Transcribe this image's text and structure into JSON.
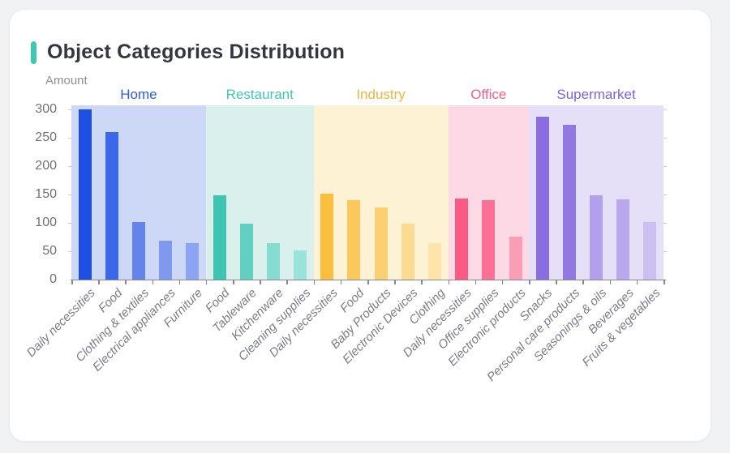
{
  "page": {
    "background_color": "#f1f2f4"
  },
  "card": {
    "title": "Object Categories Distribution",
    "accent_color": "#3ec8b4"
  },
  "chart_data": {
    "type": "bar",
    "title": "Object Categories Distribution",
    "xlabel": "",
    "ylabel": "Amount",
    "ylim": [
      0,
      300
    ],
    "yticks": [
      0,
      50,
      100,
      150,
      200,
      250,
      300
    ],
    "grid": false,
    "legend_position": "top-inline-group-headers",
    "axis_color": "#86878f",
    "tick_label_color": "#6f7179",
    "x_label_color": "#7b7c86",
    "groups": [
      {
        "name": "Home",
        "label_color": "#2b5ce6",
        "band_color": "#cdd8f7",
        "bars": [
          {
            "category": "Daily necessities",
            "value": 300,
            "color": "#1d50e2"
          },
          {
            "category": "Food",
            "value": 260,
            "color": "#3b68e8"
          },
          {
            "category": "Clothing & textiles",
            "value": 102,
            "color": "#6484ec"
          },
          {
            "category": "Electrical appliances",
            "value": 68,
            "color": "#7f99ef"
          },
          {
            "category": "Furniture",
            "value": 64,
            "color": "#8ca4f1"
          }
        ]
      },
      {
        "name": "Restaurant",
        "label_color": "#41c7b3",
        "band_color": "#d9f0ed",
        "bars": [
          {
            "category": "Food",
            "value": 148,
            "color": "#3ec5b1"
          },
          {
            "category": "Tableware",
            "value": 98,
            "color": "#62d0c1"
          },
          {
            "category": "Kitchenware",
            "value": 65,
            "color": "#86dcd1"
          },
          {
            "category": "Cleaning supplies",
            "value": 51,
            "color": "#99e3da"
          }
        ]
      },
      {
        "name": "Industry",
        "label_color": "#e9b73d",
        "band_color": "#fdf2d3",
        "bars": [
          {
            "category": "Daily necessities",
            "value": 151,
            "color": "#fbbe3d"
          },
          {
            "category": "Food",
            "value": 140,
            "color": "#fbc85c"
          },
          {
            "category": "Baby Products",
            "value": 127,
            "color": "#fcd072"
          },
          {
            "category": "Electronic Devices",
            "value": 99,
            "color": "#fdda92"
          },
          {
            "category": "Clothing",
            "value": 64,
            "color": "#fee3ab"
          }
        ]
      },
      {
        "name": "Office",
        "label_color": "#f75e89",
        "band_color": "#fdd9e5",
        "bars": [
          {
            "category": "Daily necessities",
            "value": 143,
            "color": "#fa5a84"
          },
          {
            "category": "Office supplies",
            "value": 140,
            "color": "#fb7095"
          },
          {
            "category": "Electronic products",
            "value": 76,
            "color": "#fc9db8"
          }
        ]
      },
      {
        "name": "Supermarket",
        "label_color": "#7d64d5",
        "band_color": "#e5dff7",
        "bars": [
          {
            "category": "Snacks",
            "value": 287,
            "color": "#8a6de0"
          },
          {
            "category": "Personal care products",
            "value": 273,
            "color": "#9278e2"
          },
          {
            "category": "Seasonings & oils",
            "value": 149,
            "color": "#b2a0ec"
          },
          {
            "category": "Beverages",
            "value": 141,
            "color": "#b9a8ee"
          },
          {
            "category": "Fruits & vegetables",
            "value": 101,
            "color": "#ccc0f3"
          }
        ]
      }
    ]
  }
}
